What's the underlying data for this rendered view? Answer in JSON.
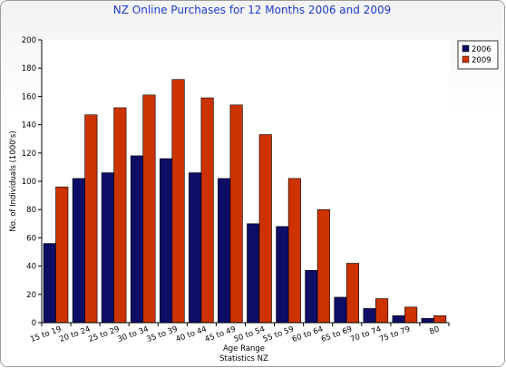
{
  "chart_data": {
    "type": "bar",
    "title": "NZ Online Purchases for 12 Months 2006 and 2009",
    "xlabel": "Age Range",
    "xlabel_sub": "Statistics NZ",
    "ylabel": "No. of Individuals (1000's)",
    "ylim": [
      0,
      200
    ],
    "yticks": [
      "0",
      "20",
      "40",
      "60",
      "80",
      "100",
      "120",
      "140",
      "160",
      "180",
      "200"
    ],
    "grid": false,
    "legend_position": "top-right",
    "categories": [
      "15 to 19",
      "20 to 24",
      "25 to 29",
      "30 to 34",
      "35 to 39",
      "40 to 44",
      "45 to 49",
      "50 to 54",
      "55 to 59",
      "60 to 64",
      "65 to 69",
      "70 to 74",
      "75 to 79",
      "80"
    ],
    "series": [
      {
        "name": "2006",
        "color": "#0d0d66",
        "values": [
          56,
          102,
          106,
          118,
          116,
          106,
          102,
          70,
          68,
          37,
          18,
          10,
          5,
          3
        ]
      },
      {
        "name": "2009",
        "color": "#cc3300",
        "values": [
          96,
          147,
          152,
          161,
          172,
          159,
          154,
          133,
          102,
          80,
          42,
          17,
          11,
          5
        ]
      }
    ]
  }
}
